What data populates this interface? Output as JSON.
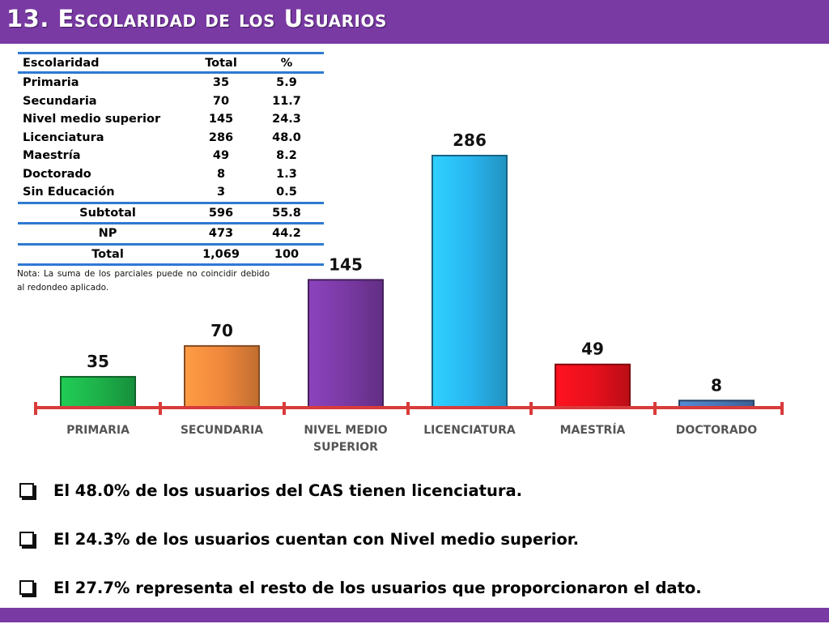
{
  "header": {
    "title": "13. Escolaridad de los Usuarios"
  },
  "table": {
    "headers": [
      "Escolaridad",
      "Total",
      "%"
    ],
    "rows": [
      [
        "Primaria",
        "35",
        "5.9"
      ],
      [
        "Secundaria",
        "70",
        "11.7"
      ],
      [
        "Nivel medio superior",
        "145",
        "24.3"
      ],
      [
        "Licenciatura",
        "286",
        "48.0"
      ],
      [
        "Maestría",
        "49",
        "8.2"
      ],
      [
        "Doctorado",
        "8",
        "1.3"
      ],
      [
        "Sin Educación",
        "3",
        "0.5"
      ]
    ],
    "subtotal": [
      "Subtotal",
      "596",
      "55.8"
    ],
    "np": [
      "NP",
      "473",
      "44.2"
    ],
    "total": [
      "Total",
      "1,069",
      "100"
    ]
  },
  "note": "Nota: La suma de los parciales puede no coincidir debido al redondeo aplicado.",
  "chart_data": {
    "type": "bar",
    "categories": [
      "PRIMARIA",
      "SECUNDARIA",
      "NIVEL MEDIO SUPERIOR",
      "LICENCIATURA",
      "MAESTRÍA",
      "DOCTORADO"
    ],
    "category_lines": [
      [
        "PRIMARIA"
      ],
      [
        "SECUNDARIA"
      ],
      [
        "NIVEL MEDIO",
        "SUPERIOR"
      ],
      [
        "LICENCIATURA"
      ],
      [
        "MAESTRÍA"
      ],
      [
        "DOCTORADO"
      ]
    ],
    "values": [
      35,
      70,
      145,
      286,
      49,
      8
    ],
    "colors": [
      "#1db24a",
      "#f0883c",
      "#7a3aa4",
      "#29b6f0",
      "#e8101c",
      "#4a78b8"
    ],
    "axis_color": "#d93b3b",
    "ylim": [
      0,
      286
    ]
  },
  "bullets": [
    "El 48.0% de los usuarios del CAS tienen licenciatura.",
    "El 24.3% de los usuarios cuentan con Nivel medio superior.",
    "El  27.7% representa el resto de los usuarios que proporcionaron el dato."
  ]
}
